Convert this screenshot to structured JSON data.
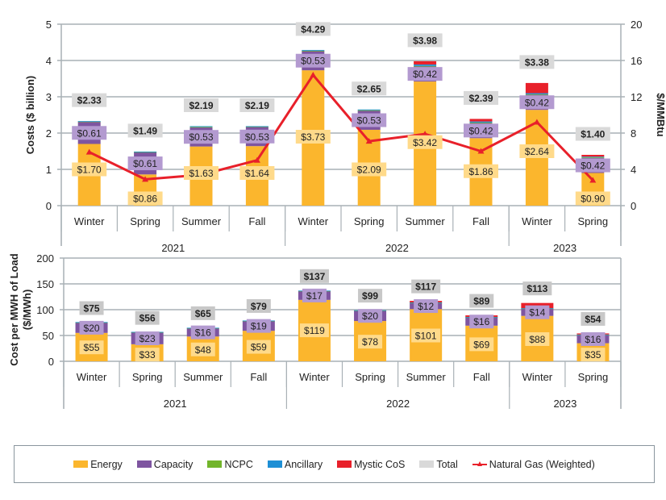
{
  "chart_data": [
    {
      "type": "bar",
      "stacked": true,
      "ylabel": "Costs ($ billion)",
      "ylim": [
        0,
        5
      ],
      "yticks": [
        0,
        1,
        2,
        3,
        4,
        5
      ],
      "y2label": "$/MMBtu",
      "y2lim": [
        0,
        20
      ],
      "y2ticks": [
        0,
        4,
        8,
        12,
        16,
        20
      ],
      "grid": true,
      "categories": [
        "Winter",
        "Spring",
        "Summer",
        "Fall",
        "Winter",
        "Spring",
        "Summer",
        "Fall",
        "Winter",
        "Spring"
      ],
      "groups": [
        {
          "label": "2021",
          "count": 4
        },
        {
          "label": "2022",
          "count": 4
        },
        {
          "label": "2023",
          "count": 2
        }
      ],
      "series": [
        {
          "name": "Energy",
          "color": "#FBB62D",
          "values": [
            1.7,
            0.86,
            1.63,
            1.64,
            3.73,
            2.09,
            3.42,
            1.86,
            2.64,
            0.9
          ],
          "labels": [
            "$1.70",
            "$0.86",
            "$1.63",
            "$1.64",
            "$3.73",
            "$2.09",
            "$3.42",
            "$1.86",
            "$2.64",
            "$0.90"
          ]
        },
        {
          "name": "Capacity",
          "color": "#7E55A0",
          "values": [
            0.61,
            0.61,
            0.53,
            0.53,
            0.53,
            0.53,
            0.42,
            0.42,
            0.42,
            0.42
          ],
          "labels": [
            "$0.61",
            "$0.61",
            "$0.53",
            "$0.53",
            "$0.53",
            "$0.53",
            "$0.42",
            "$0.42",
            "$0.42",
            "$0.42"
          ]
        },
        {
          "name": "NCPC",
          "color": "#72B52B",
          "values": [
            0.01,
            0.01,
            0.01,
            0.01,
            0.01,
            0.01,
            0.01,
            0.01,
            0.01,
            0.01
          ]
        },
        {
          "name": "Ancillary",
          "color": "#1E8FD5",
          "values": [
            0.01,
            0.01,
            0.02,
            0.01,
            0.02,
            0.02,
            0.04,
            0.03,
            0.03,
            0.02
          ]
        },
        {
          "name": "Mystic CoS",
          "color": "#E8202A",
          "values": [
            0,
            0,
            0,
            0,
            0,
            0,
            0.09,
            0.07,
            0.28,
            0.05
          ]
        }
      ],
      "totals": {
        "name": "Total",
        "color": "#D9D9D9",
        "values": [
          2.33,
          1.49,
          2.19,
          2.19,
          4.29,
          2.65,
          3.98,
          2.39,
          3.38,
          1.4
        ],
        "labels": [
          "$2.33",
          "$1.49",
          "$2.19",
          "$2.19",
          "$4.29",
          "$2.65",
          "$3.98",
          "$2.39",
          "$3.38",
          "$1.40"
        ]
      },
      "line": {
        "name": "Natural Gas (Weighted)",
        "color": "#E8202A",
        "axis": "y2",
        "values": [
          5.9,
          2.9,
          3.4,
          5.0,
          14.4,
          7.1,
          7.9,
          6.0,
          9.2,
          2.8
        ]
      }
    },
    {
      "type": "bar",
      "stacked": true,
      "ylabel": "Cost per MWH of Load ($/MWh)",
      "ylabel_lines": [
        "Cost per MWH of Load",
        "($/MWh)"
      ],
      "ylim": [
        0,
        200
      ],
      "yticks": [
        0,
        50,
        100,
        150,
        200
      ],
      "grid": true,
      "categories": [
        "Winter",
        "Spring",
        "Summer",
        "Fall",
        "Winter",
        "Spring",
        "Summer",
        "Fall",
        "Winter",
        "Spring"
      ],
      "groups": [
        {
          "label": "2021",
          "count": 4
        },
        {
          "label": "2022",
          "count": 4
        },
        {
          "label": "2023",
          "count": 2
        }
      ],
      "series": [
        {
          "name": "Energy",
          "color": "#FBB62D",
          "values": [
            55,
            33,
            48,
            59,
            119,
            78,
            101,
            69,
            88,
            35
          ],
          "labels": [
            "$55",
            "$33",
            "$48",
            "$59",
            "$119",
            "$78",
            "$101",
            "$69",
            "$88",
            "$35"
          ]
        },
        {
          "name": "Capacity",
          "color": "#7E55A0",
          "values": [
            20,
            23,
            16,
            19,
            17,
            20,
            12,
            16,
            14,
            16
          ],
          "labels": [
            "$20",
            "$23",
            "$16",
            "$19",
            "$17",
            "$20",
            "$12",
            "$16",
            "$14",
            "$16"
          ]
        },
        {
          "name": "NCPC",
          "color": "#72B52B",
          "values": [
            0.5,
            0.5,
            0.5,
            0.5,
            0.5,
            0.5,
            0.5,
            0.5,
            0.5,
            0.5
          ]
        },
        {
          "name": "Ancillary",
          "color": "#1E8FD5",
          "values": [
            0.5,
            0.5,
            0.5,
            0.5,
            0.5,
            0.5,
            0.5,
            0.5,
            0.5,
            0.5
          ]
        },
        {
          "name": "Mystic CoS",
          "color": "#E8202A",
          "values": [
            0,
            0,
            0,
            0,
            0,
            0,
            3,
            3,
            10,
            2
          ]
        }
      ],
      "totals": {
        "name": "Total",
        "color": "#C8C8C8",
        "values": [
          75,
          56,
          65,
          79,
          137,
          99,
          117,
          89,
          113,
          54
        ],
        "labels": [
          "$75",
          "$56",
          "$65",
          "$79",
          "$137",
          "$99",
          "$117",
          "$89",
          "$113",
          "$54"
        ]
      }
    }
  ],
  "legend": {
    "position": "bottom",
    "items": [
      {
        "label": "Energy",
        "color": "#FBB62D",
        "kind": "box"
      },
      {
        "label": "Capacity",
        "color": "#7E55A0",
        "kind": "box"
      },
      {
        "label": "NCPC",
        "color": "#72B52B",
        "kind": "box"
      },
      {
        "label": "Ancillary",
        "color": "#1E8FD5",
        "kind": "box"
      },
      {
        "label": "Mystic CoS",
        "color": "#E8202A",
        "kind": "box"
      },
      {
        "label": "Total",
        "color": "#D9D9D9",
        "kind": "box"
      },
      {
        "label": "Natural Gas (Weighted)",
        "color": "#E8202A",
        "kind": "line"
      }
    ]
  }
}
